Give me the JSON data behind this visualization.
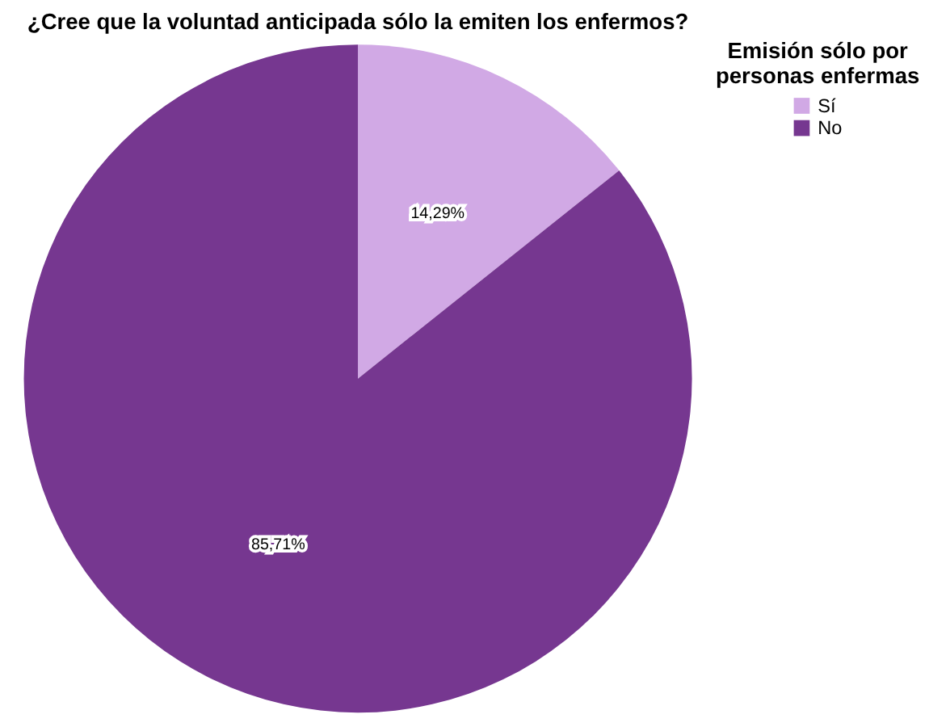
{
  "chart_data": {
    "type": "pie",
    "title": "¿Cree que la voluntad anticipada sólo la emiten los enfermos?",
    "legend_title": "Emisión sólo por personas enfermas",
    "categories": [
      "Sí",
      "No"
    ],
    "values": [
      14.29,
      85.71
    ],
    "colors": [
      "#d1a9e5",
      "#763790"
    ],
    "value_labels": [
      "14,29%",
      "85,71%"
    ],
    "legend": "right"
  }
}
